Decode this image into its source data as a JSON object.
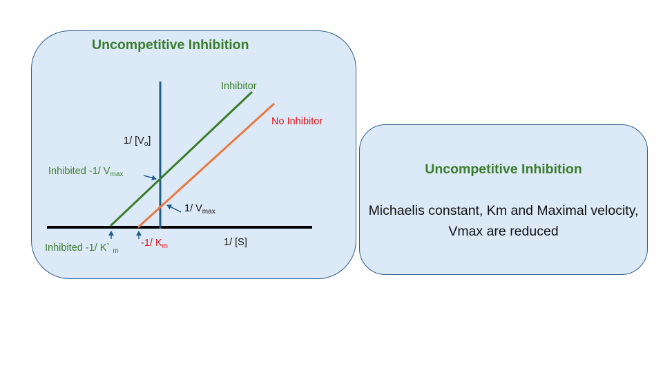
{
  "left_panel": {
    "title": "Uncompetitive Inhibition"
  },
  "right_panel": {
    "title": "Uncompetitive Inhibition",
    "description": "Michaelis constant, Km and Maximal velocity, Vmax are reduced"
  },
  "diagram": {
    "y_axis_label": {
      "text": "1/ [V",
      "sub": "o",
      "tail": "]"
    },
    "x_axis_label": "1/ [S]",
    "series": {
      "inhibitor": "Inhibitor",
      "no_inhibitor": "No Inhibitor"
    },
    "annotations": {
      "inhibited_vmax": {
        "text": "Inhibited -1/ V",
        "sub": "max"
      },
      "vmax": {
        "text": "1/ V",
        "sub": "max"
      },
      "inhibited_km": {
        "text": "Inhibited -1/ K` ",
        "sub": "m"
      },
      "km": {
        "text": "-1/ K",
        "sub": "m"
      }
    },
    "colors": {
      "inhibitor": "#3a7d2c",
      "no_inhibitor": "#e8783f",
      "y_axis": "#1f5d8c",
      "x_axis": "#000000",
      "arrow": "#1f5d8c"
    }
  }
}
